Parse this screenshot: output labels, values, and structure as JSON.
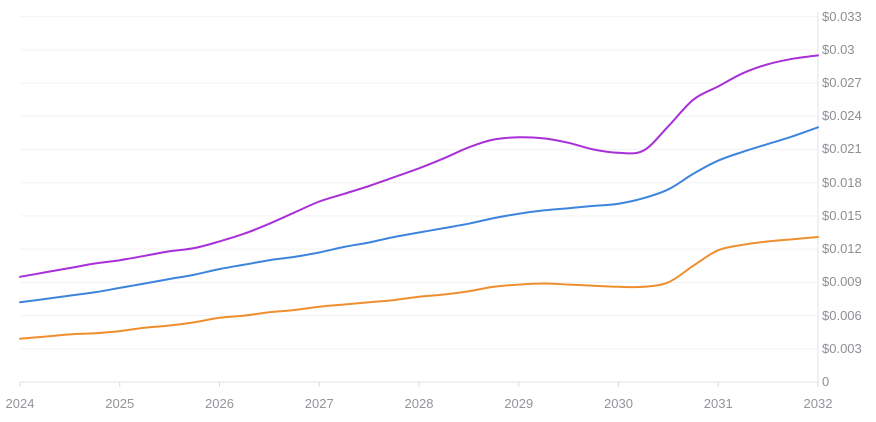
{
  "chart": {
    "title": "",
    "y_axis_side": "right",
    "x_axis_labels": [
      "2024",
      "2025",
      "2026",
      "2027",
      "2028",
      "2029",
      "2030",
      "2031",
      "2032"
    ],
    "y_axis_labels_top_down": [
      "$0.033",
      "$0.03",
      "$0.027",
      "$0.024",
      "$0.021",
      "$0.018",
      "$0.015",
      "$0.012",
      "$0.009",
      "$0.006",
      "$0.003",
      "0"
    ]
  },
  "chart_data": {
    "type": "line",
    "title": "",
    "xlabel": "",
    "ylabel": "",
    "grid": true,
    "legend": "none",
    "x_range": [
      2024,
      2032
    ],
    "y_range": [
      0,
      0.0345
    ],
    "x_ticks": [
      2024,
      2025,
      2026,
      2027,
      2028,
      2029,
      2030,
      2031,
      2032
    ],
    "x_tick_labels": [
      "2024",
      "2025",
      "2026",
      "2027",
      "2028",
      "2029",
      "2030",
      "2031",
      "2032"
    ],
    "y_ticks": [
      0,
      0.003,
      0.006,
      0.009,
      0.012,
      0.015,
      0.018,
      0.021,
      0.024,
      0.027,
      0.03,
      0.033
    ],
    "y_tick_labels": [
      "0",
      "$0.003",
      "$0.006",
      "$0.009",
      "$0.012",
      "$0.015",
      "$0.018",
      "$0.021",
      "$0.024",
      "$0.027",
      "$0.03",
      "$0.033"
    ],
    "x": [
      2024,
      2024.25,
      2024.5,
      2024.75,
      2025,
      2025.25,
      2025.5,
      2025.75,
      2026,
      2026.25,
      2026.5,
      2026.75,
      2027,
      2027.25,
      2027.5,
      2027.75,
      2028,
      2028.25,
      2028.5,
      2028.75,
      2029,
      2029.25,
      2029.5,
      2029.75,
      2030,
      2030.25,
      2030.5,
      2030.75,
      2031,
      2031.25,
      2031.5,
      2031.75,
      2032
    ],
    "series": [
      {
        "name": "purple-line",
        "color": "#a92fd8",
        "values": [
          0.0095,
          0.0099,
          0.0103,
          0.0107,
          0.011,
          0.0114,
          0.0118,
          0.0121,
          0.0127,
          0.0134,
          0.0143,
          0.0153,
          0.0163,
          0.017,
          0.0177,
          0.0185,
          0.0193,
          0.0202,
          0.0212,
          0.0219,
          0.0221,
          0.022,
          0.0216,
          0.021,
          0.0207,
          0.0209,
          0.0231,
          0.0255,
          0.0267,
          0.0279,
          0.0287,
          0.0292,
          0.0295
        ]
      },
      {
        "name": "blue-line",
        "color": "#3d85dc",
        "values": [
          0.0072,
          0.0075,
          0.0078,
          0.0081,
          0.0085,
          0.0089,
          0.0093,
          0.0097,
          0.0102,
          0.0106,
          0.011,
          0.0113,
          0.0117,
          0.0122,
          0.0126,
          0.0131,
          0.0135,
          0.0139,
          0.0143,
          0.0148,
          0.0152,
          0.0155,
          0.0157,
          0.0159,
          0.0161,
          0.0166,
          0.0174,
          0.0188,
          0.02,
          0.0208,
          0.0215,
          0.0222,
          0.023
        ]
      },
      {
        "name": "orange-line",
        "color": "#ef8e2f",
        "values": [
          0.0039,
          0.0041,
          0.0043,
          0.0044,
          0.0046,
          0.0049,
          0.0051,
          0.0054,
          0.0058,
          0.006,
          0.0063,
          0.0065,
          0.0068,
          0.007,
          0.0072,
          0.0074,
          0.0077,
          0.0079,
          0.0082,
          0.0086,
          0.0088,
          0.0089,
          0.0088,
          0.0087,
          0.0086,
          0.0086,
          0.009,
          0.0105,
          0.0119,
          0.0124,
          0.0127,
          0.0129,
          0.0131
        ]
      }
    ],
    "colors": {
      "background": "#ffffff",
      "gridline": "#f3f3f5",
      "axis_line": "#e3e3e7",
      "tick_mark": "#dcdcde",
      "tick_label": "#8f8f95"
    }
  }
}
